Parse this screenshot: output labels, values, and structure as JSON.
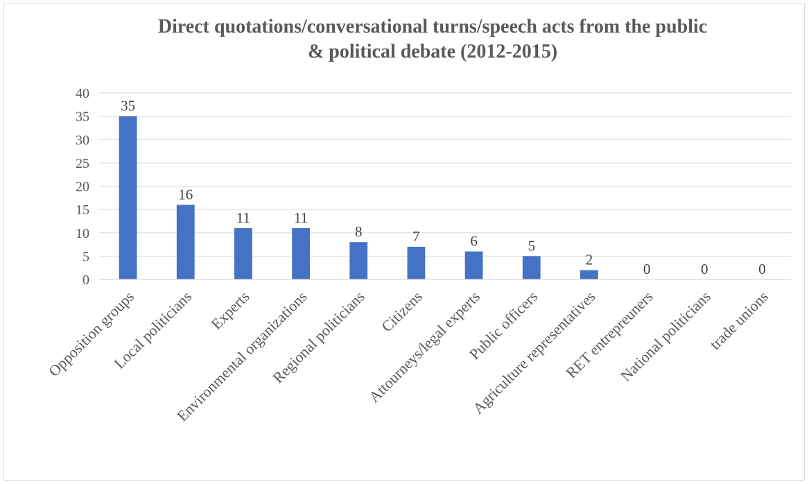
{
  "chart_data": {
    "type": "bar",
    "title": "Direct quotations/conversational turns/speech acts from the public & political debate (2012-2015)",
    "title_lines": [
      "Direct quotations/conversational turns/speech acts from the public",
      "& political debate (2012-2015)"
    ],
    "categories": [
      "Opposition groups",
      "Local politicians",
      "Experts",
      "Environmental organizations",
      "Regional politicians",
      "Citizens",
      "Attourneys/legal experts",
      "Public officers",
      "Agriculture representatives",
      "RET entrepreuners",
      "National politicians",
      "trade unions"
    ],
    "values": [
      35,
      16,
      11,
      11,
      8,
      7,
      6,
      5,
      2,
      0,
      0,
      0
    ],
    "ylim": [
      0,
      40
    ],
    "yticks": [
      0,
      5,
      10,
      15,
      20,
      25,
      30,
      35,
      40
    ],
    "xlabel": "",
    "ylabel": "",
    "grid": true,
    "data_labels": true,
    "legend": "none",
    "colors": {
      "bar": "#4472C4",
      "grid": "#d9d9d9",
      "text": "#595959",
      "data_label": "#404040",
      "border": "#d9d9d9"
    }
  }
}
